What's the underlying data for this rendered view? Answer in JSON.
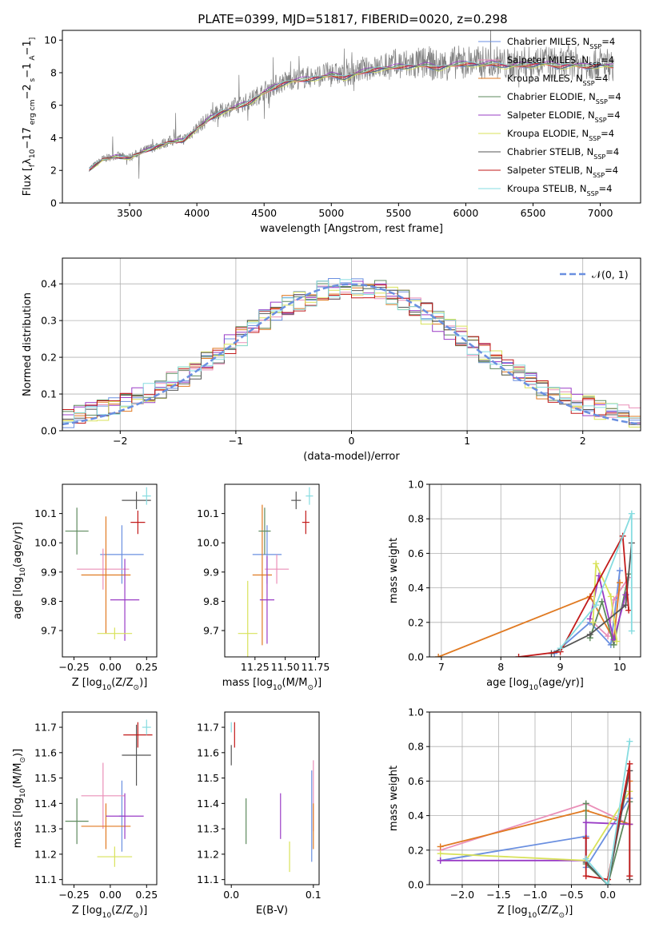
{
  "title": "PLATE=0399, MJD=51817, FIBERID=0020, z=0.298",
  "colors": {
    "Chabrier MILES": "#6a8fe0",
    "Salpeter MILES": "#ea8fb8",
    "Kroupa MILES": "#e07a22",
    "Chabrier ELODIE": "#5e8a5e",
    "Salpeter ELODIE": "#9a3cc6",
    "Kroupa ELODIE": "#d8e25a",
    "Chabrier STELIB": "#555555",
    "Salpeter STELIB": "#c21a1a",
    "Kroupa STELIB": "#86dce0",
    "data": "#808080",
    "normal": "#6a8fe0",
    "grid": "#b0b0b0"
  },
  "chart_data": [
    {
      "id": "spectrum",
      "type": "line",
      "xlabel": "wavelength [Angstrom, rest frame]",
      "ylabel_parts": [
        "Flux [",
        "f",
        "λ",
        "10",
        "−17",
        " erg cm",
        "−2",
        " s",
        "−1",
        " A",
        "−1",
        "]"
      ],
      "xlim": [
        3000,
        7300
      ],
      "ylim": [
        0,
        10.6
      ],
      "xticks": [
        3500,
        4000,
        4500,
        5000,
        5500,
        6000,
        6500,
        7000
      ],
      "yticks": [
        0,
        2,
        4,
        6,
        8,
        10
      ],
      "legend_position": "top-right",
      "legend": [
        {
          "name": "Chabrier MILES",
          "sub": "SSP",
          "val": "=4"
        },
        {
          "name": "Salpeter MILES",
          "sub": "SSP",
          "val": "=4"
        },
        {
          "name": "Kroupa MILES",
          "sub": "SSP",
          "val": "=4"
        },
        {
          "name": "Chabrier ELODIE",
          "sub": "SSP",
          "val": "=4"
        },
        {
          "name": "Salpeter ELODIE",
          "sub": "SSP",
          "val": "=4"
        },
        {
          "name": "Kroupa ELODIE",
          "sub": "SSP",
          "val": "=4"
        },
        {
          "name": "Chabrier STELIB",
          "sub": "SSP",
          "val": "=4"
        },
        {
          "name": "Salpeter STELIB",
          "sub": "SSP",
          "val": "=4"
        },
        {
          "name": "Kroupa STELIB",
          "sub": "SSP",
          "val": "=4"
        }
      ],
      "continuum": {
        "x": [
          3200,
          3300,
          3400,
          3500,
          3600,
          3700,
          3800,
          3900,
          4000,
          4100,
          4200,
          4300,
          4400,
          4500,
          4600,
          4700,
          4800,
          4900,
          5000,
          5100,
          5200,
          5300,
          5400,
          5500,
          5600,
          5700,
          5800,
          5900,
          6000,
          6100,
          6200,
          6300,
          6400,
          6500,
          6600,
          6700,
          6800,
          6900,
          7000,
          7100
        ],
        "y": [
          2.1,
          2.7,
          2.9,
          2.8,
          3.2,
          3.5,
          3.8,
          3.9,
          4.6,
          5.3,
          5.7,
          6.0,
          6.3,
          6.9,
          7.3,
          7.6,
          7.7,
          7.8,
          8.0,
          7.8,
          8.1,
          8.3,
          8.4,
          8.5,
          8.5,
          8.6,
          8.4,
          8.6,
          8.7,
          8.6,
          8.7,
          8.5,
          8.6,
          8.6,
          8.7,
          8.5,
          8.6,
          8.5,
          8.6,
          8.5
        ]
      }
    },
    {
      "id": "residuals",
      "type": "step",
      "xlabel": "(data-model)/error",
      "ylabel": "Normed distribution",
      "xlim": [
        -2.5,
        2.5
      ],
      "ylim": [
        0,
        0.47
      ],
      "xticks": [
        -2,
        -1,
        0,
        1,
        2
      ],
      "yticks": [
        0.0,
        0.1,
        0.2,
        0.3,
        0.4
      ],
      "legend_position": "top-right",
      "legend": [
        {
          "name": "𝒩(0, 1)"
        }
      ]
    },
    {
      "id": "age_vs_Z",
      "type": "errorbar",
      "xlabel_parts": [
        "Z [log",
        "10",
        "(Z/Z",
        "⊙",
        ")]"
      ],
      "ylabel_parts": [
        "age  [log",
        "10",
        "(age/yr)]"
      ],
      "xlim": [
        -0.33,
        0.32
      ],
      "ylim": [
        9.61,
        10.2
      ],
      "xticks": [
        -0.25,
        0.0,
        0.25
      ],
      "yticks": [
        9.7,
        9.8,
        9.9,
        10.0,
        10.1
      ],
      "points": [
        {
          "series": "Chabrier MILES",
          "x": 0.08,
          "y": 9.96,
          "xerr": 0.15,
          "yerr": 0.1
        },
        {
          "series": "Salpeter MILES",
          "x": -0.05,
          "y": 9.91,
          "xerr": 0.18,
          "yerr": 0.07
        },
        {
          "series": "Kroupa MILES",
          "x": -0.03,
          "y": 9.89,
          "xerr": 0.17,
          "yerr": 0.2
        },
        {
          "series": "Chabrier ELODIE",
          "x": -0.23,
          "y": 10.04,
          "xerr": 0.08,
          "yerr": 0.08
        },
        {
          "series": "Salpeter ELODIE",
          "x": 0.1,
          "y": 9.805,
          "xerr": 0.1,
          "yerr": 0.14
        },
        {
          "series": "Kroupa ELODIE",
          "x": 0.03,
          "y": 9.69,
          "xerr": 0.12,
          "yerr": 0.02
        },
        {
          "series": "Chabrier STELIB",
          "x": 0.18,
          "y": 10.145,
          "xerr": 0.1,
          "yerr": 0.03
        },
        {
          "series": "Salpeter STELIB",
          "x": 0.19,
          "y": 10.07,
          "xerr": 0.05,
          "yerr": 0.04
        },
        {
          "series": "Kroupa STELIB",
          "x": 0.25,
          "y": 10.16,
          "xerr": 0.03,
          "yerr": 0.03
        }
      ]
    },
    {
      "id": "age_vs_mass",
      "type": "errorbar",
      "xlabel_parts": [
        "mass [log",
        "10",
        "(M/M",
        "⊙",
        ")]"
      ],
      "xlim": [
        11.0,
        11.78
      ],
      "ylim": [
        9.61,
        10.2
      ],
      "xticks": [
        11.25,
        11.5,
        11.75
      ],
      "yticks": [
        9.7,
        9.8,
        9.9,
        10.0,
        10.1
      ],
      "points": [
        {
          "series": "Chabrier MILES",
          "x": 11.35,
          "y": 9.96,
          "xerr": 0.12,
          "yerr": 0.1
        },
        {
          "series": "Salpeter MILES",
          "x": 11.43,
          "y": 9.91,
          "xerr": 0.1,
          "yerr": 0.05
        },
        {
          "series": "Kroupa MILES",
          "x": 11.31,
          "y": 9.89,
          "xerr": 0.08,
          "yerr": 0.24
        },
        {
          "series": "Chabrier ELODIE",
          "x": 11.33,
          "y": 10.04,
          "xerr": 0.05,
          "yerr": 0.08
        },
        {
          "series": "Salpeter ELODIE",
          "x": 11.35,
          "y": 9.805,
          "xerr": 0.06,
          "yerr": 0.15
        },
        {
          "series": "Kroupa ELODIE",
          "x": 11.19,
          "y": 9.69,
          "xerr": 0.08,
          "yerr": 0.18
        },
        {
          "series": "Chabrier STELIB",
          "x": 11.59,
          "y": 10.145,
          "xerr": 0.04,
          "yerr": 0.03
        },
        {
          "series": "Salpeter STELIB",
          "x": 11.67,
          "y": 10.07,
          "xerr": 0.03,
          "yerr": 0.04
        },
        {
          "series": "Kroupa STELIB",
          "x": 11.7,
          "y": 10.16,
          "xerr": 0.03,
          "yerr": 0.03
        }
      ]
    },
    {
      "id": "weight_vs_age",
      "type": "line",
      "xlabel_parts": [
        "age  [log",
        "10",
        "(age/yr)]"
      ],
      "ylabel": "mass weight",
      "xlim": [
        6.8,
        10.35
      ],
      "ylim": [
        0,
        1.0
      ],
      "xticks": [
        7,
        8,
        9,
        10
      ],
      "yticks": [
        0.0,
        0.2,
        0.4,
        0.6,
        0.8,
        1.0
      ],
      "series": [
        {
          "name": "Chabrier MILES",
          "x": [
            8.9,
            9.5,
            9.85,
            10.0
          ],
          "y": [
            0.02,
            0.2,
            0.07,
            0.5
          ]
        },
        {
          "name": "Salpeter MILES",
          "x": [
            9.55,
            9.8,
            9.9,
            10.15
          ],
          "y": [
            0.2,
            0.12,
            0.33,
            0.46
          ]
        },
        {
          "name": "Kroupa MILES",
          "x": [
            6.95,
            9.5,
            9.9,
            10.0
          ],
          "y": [
            0.0,
            0.35,
            0.1,
            0.43
          ]
        },
        {
          "name": "Chabrier ELODIE",
          "x": [
            9.5,
            9.7,
            9.9,
            10.15
          ],
          "y": [
            0.11,
            0.32,
            0.07,
            0.48
          ]
        },
        {
          "name": "Salpeter ELODIE",
          "x": [
            9.5,
            9.65,
            9.9,
            10.1
          ],
          "y": [
            0.22,
            0.47,
            0.1,
            0.36
          ]
        },
        {
          "name": "Kroupa ELODIE",
          "x": [
            9.55,
            9.6,
            9.85,
            9.95
          ],
          "y": [
            0.2,
            0.54,
            0.35,
            0.09
          ]
        },
        {
          "name": "Chabrier STELIB",
          "x": [
            8.85,
            9.5,
            10.1,
            10.2
          ],
          "y": [
            0.02,
            0.13,
            0.3,
            0.66
          ]
        },
        {
          "name": "Salpeter STELIB",
          "x": [
            8.3,
            9.0,
            10.05,
            10.15
          ],
          "y": [
            0.0,
            0.03,
            0.7,
            0.27
          ]
        },
        {
          "name": "Kroupa STELIB",
          "x": [
            9.0,
            9.6,
            10.2,
            10.2
          ],
          "y": [
            0.05,
            0.3,
            0.83,
            0.15
          ]
        }
      ]
    },
    {
      "id": "mass_vs_Z",
      "type": "errorbar",
      "xlabel_parts": [
        "Z [log",
        "10",
        "(Z/Z",
        "⊙",
        ")]"
      ],
      "ylabel_parts": [
        "mass [log",
        "10",
        "(M/M",
        "⊙",
        ")]"
      ],
      "xlim": [
        -0.33,
        0.32
      ],
      "ylim": [
        11.08,
        11.76
      ],
      "xticks": [
        -0.25,
        0.0,
        0.25
      ],
      "yticks": [
        11.1,
        11.2,
        11.3,
        11.4,
        11.5,
        11.6,
        11.7
      ],
      "points": [
        {
          "series": "Chabrier MILES",
          "x": 0.08,
          "y": 11.35,
          "xerr": 0.02,
          "yerr": 0.14
        },
        {
          "series": "Salpeter MILES",
          "x": -0.05,
          "y": 11.43,
          "xerr": 0.15,
          "yerr": 0.13
        },
        {
          "series": "Kroupa MILES",
          "x": -0.03,
          "y": 11.31,
          "xerr": 0.17,
          "yerr": 0.09
        },
        {
          "series": "Chabrier ELODIE",
          "x": -0.23,
          "y": 11.33,
          "xerr": 0.08,
          "yerr": 0.09
        },
        {
          "series": "Salpeter ELODIE",
          "x": 0.1,
          "y": 11.35,
          "xerr": 0.13,
          "yerr": 0.09
        },
        {
          "series": "Kroupa ELODIE",
          "x": 0.03,
          "y": 11.19,
          "xerr": 0.12,
          "yerr": 0.04
        },
        {
          "series": "Chabrier STELIB",
          "x": 0.18,
          "y": 11.59,
          "xerr": 0.1,
          "yerr": 0.12
        },
        {
          "series": "Salpeter STELIB",
          "x": 0.19,
          "y": 11.67,
          "xerr": 0.1,
          "yerr": 0.05
        },
        {
          "series": "Kroupa STELIB",
          "x": 0.25,
          "y": 11.7,
          "xerr": 0.03,
          "yerr": 0.03
        }
      ]
    },
    {
      "id": "mass_vs_EBV",
      "type": "errorbar",
      "xlabel": "E(B-V)",
      "xlim": [
        -0.008,
        0.107
      ],
      "ylim": [
        11.08,
        11.76
      ],
      "xticks": [
        0.0,
        0.1
      ],
      "yticks": [
        11.1,
        11.2,
        11.3,
        11.4,
        11.5,
        11.6,
        11.7
      ],
      "points": [
        {
          "series": "Chabrier MILES",
          "x": 0.098,
          "y": 11.35,
          "xerr": 0,
          "yerr": 0.18
        },
        {
          "series": "Salpeter MILES",
          "x": 0.1,
          "y": 11.43,
          "xerr": 0,
          "yerr": 0.14
        },
        {
          "series": "Kroupa MILES",
          "x": 0.1,
          "y": 11.31,
          "xerr": 0,
          "yerr": 0.09
        },
        {
          "series": "Chabrier ELODIE",
          "x": 0.018,
          "y": 11.33,
          "xerr": 0,
          "yerr": 0.09
        },
        {
          "series": "Salpeter ELODIE",
          "x": 0.06,
          "y": 11.35,
          "xerr": 0,
          "yerr": 0.09
        },
        {
          "series": "Kroupa ELODIE",
          "x": 0.071,
          "y": 11.19,
          "xerr": 0,
          "yerr": 0.06
        },
        {
          "series": "Chabrier STELIB",
          "x": 0.0,
          "y": 11.59,
          "xerr": 0,
          "yerr": 0.04
        },
        {
          "series": "Salpeter STELIB",
          "x": 0.004,
          "y": 11.67,
          "xerr": 0,
          "yerr": 0.05
        },
        {
          "series": "Kroupa STELIB",
          "x": 0.0,
          "y": 11.7,
          "xerr": 0,
          "yerr": 0.02
        }
      ]
    },
    {
      "id": "weight_vs_Z",
      "type": "line",
      "xlabel_parts": [
        "Z [log",
        "10",
        "(Z/Z",
        "⊙",
        ")]"
      ],
      "ylabel": "mass weight",
      "xlim": [
        -2.45,
        0.45
      ],
      "ylim": [
        0,
        1.0
      ],
      "xticks": [
        -2.0,
        -1.5,
        -1.0,
        -0.5,
        0.0
      ],
      "ytick_labels": [
        "0.0",
        "0.2",
        "0.4",
        "0.6",
        "0.8",
        "1.0"
      ],
      "yticks": [
        0.0,
        0.2,
        0.4,
        0.6,
        0.8,
        1.0
      ],
      "series": [
        {
          "name": "Chabrier MILES",
          "x": [
            -2.3,
            -0.3,
            -0.3,
            0.3,
            0.3
          ],
          "y": [
            0.14,
            0.28,
            0.1,
            0.5,
            0.35
          ]
        },
        {
          "name": "Salpeter MILES",
          "x": [
            -2.3,
            -0.3,
            0.3,
            0.3
          ],
          "y": [
            0.2,
            0.47,
            0.35,
            0.35
          ]
        },
        {
          "name": "Kroupa MILES",
          "x": [
            -2.3,
            -0.3,
            0.3,
            0.3
          ],
          "y": [
            0.22,
            0.43,
            0.35,
            0.6
          ]
        },
        {
          "name": "Chabrier ELODIE",
          "x": [
            -0.3,
            -0.3,
            0.0,
            0.3
          ],
          "y": [
            0.47,
            0.12,
            0.0,
            0.48
          ]
        },
        {
          "name": "Salpeter ELODIE",
          "x": [
            -2.3,
            -0.3,
            -0.3,
            0.3
          ],
          "y": [
            0.14,
            0.14,
            0.36,
            0.35
          ]
        },
        {
          "name": "Kroupa ELODIE",
          "x": [
            -2.3,
            -0.3,
            0.3
          ],
          "y": [
            0.18,
            0.14,
            0.54
          ]
        },
        {
          "name": "Chabrier STELIB",
          "x": [
            -0.3,
            0.0,
            0.3,
            0.3
          ],
          "y": [
            0.13,
            0.0,
            0.66,
            0.03
          ]
        },
        {
          "name": "Salpeter STELIB",
          "x": [
            -0.3,
            -0.3,
            0.0,
            0.3,
            0.3
          ],
          "y": [
            0.27,
            0.05,
            0.03,
            0.7,
            0.05
          ]
        },
        {
          "name": "Kroupa STELIB",
          "x": [
            -0.3,
            0.0,
            0.3
          ],
          "y": [
            0.15,
            0.0,
            0.83
          ]
        }
      ]
    }
  ]
}
